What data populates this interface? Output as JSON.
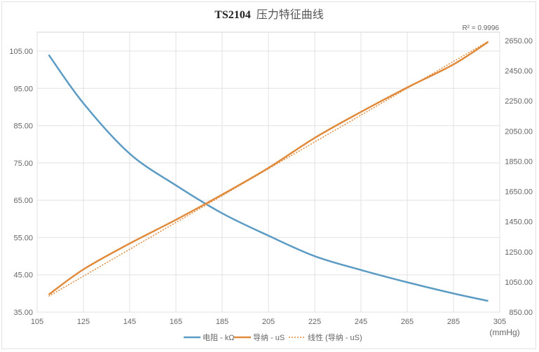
{
  "chart_data": {
    "type": "line",
    "title_bold": "TS2104",
    "title_rest": "压力特征曲线",
    "annotation": "R² = 0.9996",
    "xlabel": "(mmHg)",
    "xlim": [
      105,
      305
    ],
    "xticks": [
      "105",
      "125",
      "145",
      "165",
      "185",
      "205",
      "225",
      "245",
      "265",
      "285",
      "305"
    ],
    "ylim_left": [
      35,
      105
    ],
    "yticks_left": [
      "35.00",
      "45.00",
      "55.00",
      "65.00",
      "75.00",
      "85.00",
      "95.00",
      "105.00"
    ],
    "ylim_right": [
      850,
      2650
    ],
    "yticks_right": [
      "850.00",
      "1050.00",
      "1250.00",
      "1450.00",
      "1650.00",
      "1850.00",
      "2050.00",
      "2250.00",
      "2450.00",
      "2650.00"
    ],
    "grid": true,
    "legend_position": "bottom",
    "series": [
      {
        "name": "电阻 - kΩ",
        "axis": "left",
        "color": "#5b9bc4",
        "style": "solid",
        "x": [
          110,
          125,
          145,
          165,
          185,
          205,
          225,
          245,
          265,
          285,
          300
        ],
        "y": [
          104,
          91,
          77.5,
          69,
          61.5,
          55.5,
          50,
          46.3,
          43,
          40,
          38
        ]
      },
      {
        "name": "导纳 - uS",
        "axis": "right",
        "color": "#e08a3c",
        "style": "solid",
        "x": [
          110,
          125,
          145,
          165,
          185,
          205,
          225,
          245,
          265,
          285,
          300
        ],
        "y": [
          966,
          1133,
          1305,
          1462,
          1629,
          1806,
          2005,
          2177,
          2339,
          2492,
          2641
        ]
      },
      {
        "name": "线性 (导纳 - uS)",
        "axis": "right",
        "color": "#e08a3c",
        "style": "dotted",
        "x": [
          110,
          300
        ],
        "y": [
          955,
          2645
        ]
      }
    ]
  }
}
